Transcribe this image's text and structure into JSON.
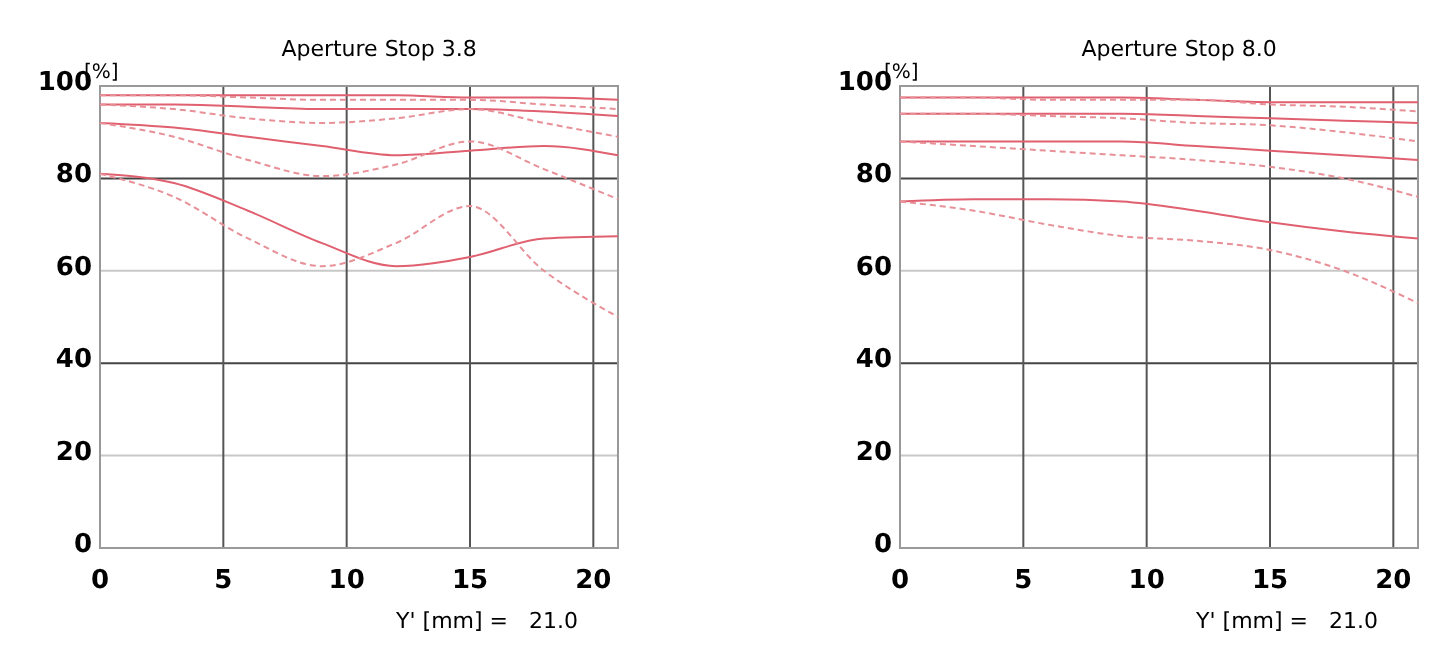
{
  "chart_data": [
    {
      "type": "line",
      "title": "Aperture Stop 3.8",
      "ylabel": "[%]",
      "xlabel": "Y' [mm] =   21.0",
      "x": [
        0,
        3,
        6,
        9,
        12,
        15,
        18,
        21
      ],
      "xlim": [
        0,
        21
      ],
      "xticks": [
        0,
        5,
        10,
        15,
        20
      ],
      "ylim": [
        0,
        100
      ],
      "yticks": [
        0,
        20,
        40,
        60,
        80,
        100
      ],
      "grid": true,
      "marker": "none",
      "series": [
        {
          "color": "#e06070",
          "line_style": "solid",
          "values": [
            98,
            98,
            98,
            98,
            98,
            97.5,
            97.5,
            97
          ]
        },
        {
          "color": "#e89098",
          "line_style": "dashed",
          "values": [
            98,
            98,
            97.5,
            97,
            97,
            97,
            96,
            95
          ]
        },
        {
          "color": "#e06070",
          "line_style": "solid",
          "values": [
            96,
            96,
            95.5,
            95,
            95,
            95,
            94.5,
            93.5
          ]
        },
        {
          "color": "#e89098",
          "line_style": "dashed",
          "values": [
            96,
            95,
            93,
            92,
            93,
            95,
            92,
            89
          ]
        },
        {
          "color": "#e06070",
          "line_style": "solid",
          "values": [
            92,
            91,
            89,
            87,
            85,
            86,
            87,
            85
          ]
        },
        {
          "color": "#e89098",
          "line_style": "dashed",
          "values": [
            92,
            89,
            84,
            80.5,
            83,
            88,
            82,
            75.5
          ]
        },
        {
          "color": "#e06070",
          "line_style": "solid",
          "values": [
            81,
            79,
            73,
            66,
            61,
            63,
            67,
            67.5
          ]
        },
        {
          "color": "#e89098",
          "line_style": "dashed",
          "values": [
            81,
            76,
            67,
            61,
            66,
            74,
            60,
            50
          ]
        }
      ]
    },
    {
      "type": "line",
      "title": "Aperture Stop 8.0",
      "ylabel": "[%]",
      "xlabel": "Y' [mm] =   21.0",
      "x": [
        0,
        3,
        6,
        9,
        12,
        15,
        18,
        21
      ],
      "xlim": [
        0,
        21
      ],
      "xticks": [
        0,
        5,
        10,
        15,
        20
      ],
      "ylim": [
        0,
        100
      ],
      "yticks": [
        0,
        20,
        40,
        60,
        80,
        100
      ],
      "grid": true,
      "marker": "none",
      "series": [
        {
          "color": "#e06070",
          "line_style": "solid",
          "values": [
            97.5,
            97.5,
            97.5,
            97.5,
            97,
            96.5,
            96.5,
            96.5
          ]
        },
        {
          "color": "#e89098",
          "line_style": "dashed",
          "values": [
            97.5,
            97.5,
            97,
            97,
            97,
            96,
            95.5,
            94.5
          ]
        },
        {
          "color": "#e06070",
          "line_style": "solid",
          "values": [
            94,
            94,
            94,
            94,
            93.5,
            93,
            92.5,
            92
          ]
        },
        {
          "color": "#e89098",
          "line_style": "dashed",
          "values": [
            94,
            94,
            93.5,
            93,
            92,
            91.5,
            90,
            88
          ]
        },
        {
          "color": "#e06070",
          "line_style": "solid",
          "values": [
            88,
            88,
            88,
            88,
            87,
            86,
            85,
            84
          ]
        },
        {
          "color": "#e89098",
          "line_style": "dashed",
          "values": [
            88,
            87,
            86,
            85,
            84,
            82.5,
            80,
            76
          ]
        },
        {
          "color": "#e06070",
          "line_style": "solid",
          "values": [
            75,
            75.5,
            75.5,
            75,
            73,
            70.5,
            68.5,
            67
          ]
        },
        {
          "color": "#e89098",
          "line_style": "dashed",
          "values": [
            75,
            73,
            70,
            67.5,
            66.5,
            64.5,
            60,
            53
          ]
        }
      ]
    }
  ]
}
